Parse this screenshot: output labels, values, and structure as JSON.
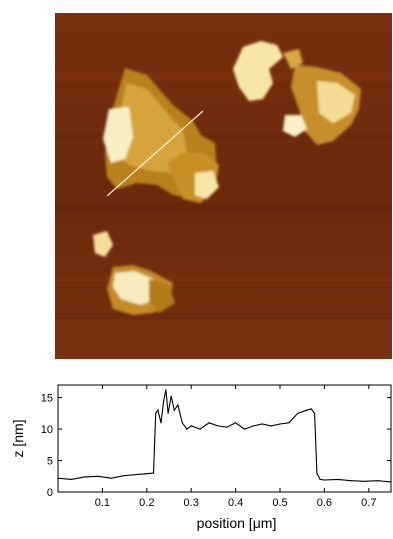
{
  "afm_image": {
    "description_colors": {
      "background": "#6e2a0c",
      "flake_mid": "#c9891e",
      "flake_high": "#f7e7a6"
    }
  },
  "chart_data": {
    "type": "line",
    "xlabel_prefix": "position [",
    "xlabel_unit": "μm",
    "xlabel_suffix": "]",
    "ylabel": "z [nm]",
    "xlim": [
      0.0,
      0.75
    ],
    "ylim": [
      0,
      17
    ],
    "x_ticks": [
      "0.1",
      "0.2",
      "0.3",
      "0.4",
      "0.5",
      "0.6",
      "0.7"
    ],
    "y_ticks": [
      "0",
      "5",
      "10",
      "15"
    ],
    "x": [
      0.0,
      0.03,
      0.06,
      0.09,
      0.12,
      0.15,
      0.18,
      0.2,
      0.215,
      0.22,
      0.225,
      0.232,
      0.238,
      0.243,
      0.248,
      0.255,
      0.262,
      0.27,
      0.28,
      0.29,
      0.3,
      0.32,
      0.34,
      0.36,
      0.38,
      0.4,
      0.42,
      0.44,
      0.46,
      0.48,
      0.5,
      0.52,
      0.54,
      0.56,
      0.57,
      0.578,
      0.583,
      0.59,
      0.6,
      0.63,
      0.66,
      0.69,
      0.72,
      0.75
    ],
    "y": [
      2.2,
      2.0,
      2.4,
      2.5,
      2.2,
      2.6,
      2.8,
      2.9,
      3.0,
      12.5,
      13.0,
      11.0,
      14.5,
      16.2,
      12.5,
      15.2,
      13.0,
      13.8,
      11.0,
      10.0,
      10.5,
      10.0,
      11.0,
      10.5,
      10.3,
      11.0,
      10.0,
      10.5,
      10.8,
      10.5,
      10.8,
      11.0,
      12.5,
      13.0,
      13.2,
      12.5,
      3.0,
      2.0,
      1.9,
      2.0,
      1.8,
      1.7,
      1.8,
      1.6
    ],
    "color": "#000000"
  }
}
